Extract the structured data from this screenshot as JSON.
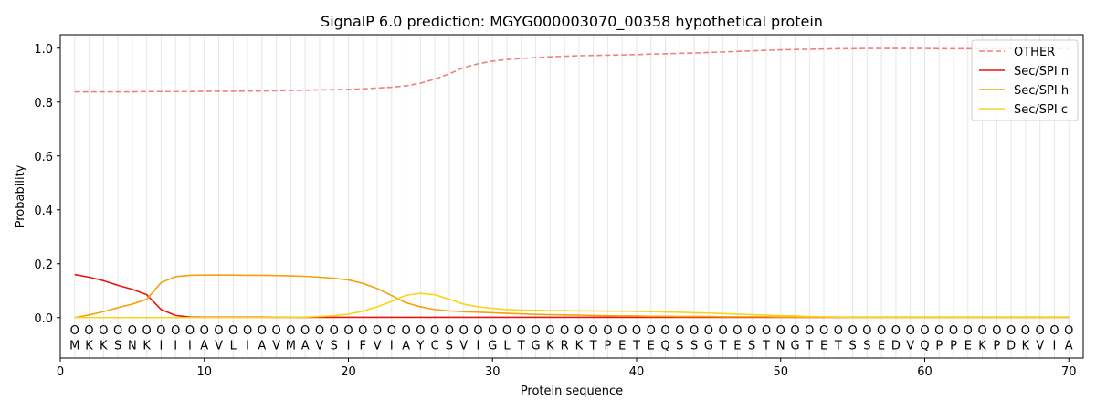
{
  "chart_data": {
    "type": "line",
    "title": "SignalP 6.0 prediction: MGYG000003070_00358 hypothetical protein",
    "xlabel": "Protein sequence",
    "ylabel": "Probability",
    "xlim": [
      0,
      71
    ],
    "ylim": [
      -0.15,
      1.05
    ],
    "xticks": [
      0,
      10,
      20,
      30,
      40,
      50,
      60,
      70
    ],
    "yticks": [
      "0.0",
      "0.2",
      "0.4",
      "0.6",
      "0.8",
      "1.0"
    ],
    "grid": "vertical lines at each residue",
    "legend_position": "top-right",
    "sequence": "MKKSNKIIIAVLIAVMAVSIFVIAYCSVIGLTGKRKTPETEQSSGTESTNGTETSSEDVQPPEKPDKVIA",
    "labels_row": "OOOOOOOOOOOOOOOOOOOOOOOOOOOOOOOOOOOOOOOOOOOOOOOOOOOOOOOOOOOOOOOOOOOOOO",
    "series": [
      {
        "name": "OTHER",
        "color": "#f08080",
        "dash": true,
        "values": [
          0.838,
          0.838,
          0.838,
          0.838,
          0.838,
          0.839,
          0.839,
          0.839,
          0.839,
          0.84,
          0.84,
          0.84,
          0.841,
          0.841,
          0.842,
          0.843,
          0.844,
          0.845,
          0.846,
          0.847,
          0.849,
          0.852,
          0.855,
          0.86,
          0.87,
          0.885,
          0.905,
          0.928,
          0.942,
          0.952,
          0.958,
          0.962,
          0.965,
          0.968,
          0.97,
          0.972,
          0.973,
          0.974,
          0.975,
          0.976,
          0.978,
          0.979,
          0.981,
          0.982,
          0.984,
          0.986,
          0.988,
          0.99,
          0.992,
          0.994,
          0.995,
          0.996,
          0.997,
          0.998,
          0.998,
          0.999,
          0.999,
          0.999,
          0.999,
          0.999,
          0.998,
          0.998,
          0.998,
          0.998,
          0.998,
          0.998,
          0.998,
          0.998,
          0.998,
          0.998
        ]
      },
      {
        "name": "Sec/SPI n",
        "color": "#e8140e",
        "dash": false,
        "values": [
          0.16,
          0.15,
          0.137,
          0.12,
          0.105,
          0.085,
          0.03,
          0.008,
          0.002,
          0.001,
          0.001,
          0.001,
          0.001,
          0.001,
          0.001,
          0.001,
          0.001,
          0.001,
          0.001,
          0.001,
          0.001,
          0.001,
          0.001,
          0.001,
          0.001,
          0.001,
          0.001,
          0.001,
          0.001,
          0.001,
          0.001,
          0.001,
          0.001,
          0.001,
          0.001,
          0.001,
          0.001,
          0.001,
          0.001,
          0.001,
          0.001,
          0.001,
          0.001,
          0.001,
          0.001,
          0.001,
          0.001,
          0.001,
          0.001,
          0.001,
          0.001,
          0.001,
          0.001,
          0.001,
          0.001,
          0.001,
          0.001,
          0.001,
          0.001,
          0.001,
          0.001,
          0.001,
          0.001,
          0.001,
          0.001,
          0.001,
          0.001,
          0.001,
          0.001,
          0.001
        ]
      },
      {
        "name": "Sec/SPI h",
        "color": "#f5a00c",
        "dash": false,
        "values": [
          0.0,
          0.01,
          0.022,
          0.037,
          0.05,
          0.068,
          0.13,
          0.152,
          0.157,
          0.158,
          0.158,
          0.158,
          0.157,
          0.157,
          0.156,
          0.155,
          0.153,
          0.15,
          0.146,
          0.14,
          0.127,
          0.108,
          0.082,
          0.055,
          0.04,
          0.03,
          0.025,
          0.022,
          0.02,
          0.018,
          0.016,
          0.014,
          0.012,
          0.011,
          0.01,
          0.009,
          0.008,
          0.007,
          0.006,
          0.006,
          0.005,
          0.005,
          0.004,
          0.004,
          0.004,
          0.003,
          0.003,
          0.003,
          0.003,
          0.002,
          0.002,
          0.002,
          0.002,
          0.002,
          0.002,
          0.002,
          0.002,
          0.002,
          0.002,
          0.002,
          0.002,
          0.002,
          0.002,
          0.002,
          0.002,
          0.002,
          0.002,
          0.002,
          0.002,
          0.002
        ]
      },
      {
        "name": "Sec/SPI c",
        "color": "#f8d41a",
        "dash": false,
        "values": [
          0.0,
          0.0,
          0.0,
          0.0,
          0.0,
          0.0,
          0.0,
          0.0,
          0.0,
          0.0,
          0.0,
          0.0,
          0.0,
          0.0,
          0.001,
          0.001,
          0.002,
          0.004,
          0.007,
          0.013,
          0.024,
          0.04,
          0.06,
          0.083,
          0.09,
          0.085,
          0.068,
          0.05,
          0.04,
          0.034,
          0.03,
          0.028,
          0.027,
          0.026,
          0.026,
          0.025,
          0.025,
          0.024,
          0.024,
          0.023,
          0.022,
          0.021,
          0.02,
          0.018,
          0.017,
          0.015,
          0.013,
          0.011,
          0.009,
          0.007,
          0.006,
          0.004,
          0.003,
          0.002,
          0.001,
          0.001,
          0.001,
          0.001,
          0.001,
          0.001,
          0.001,
          0.001,
          0.001,
          0.001,
          0.001,
          0.001,
          0.001,
          0.001,
          0.001,
          0.001
        ]
      }
    ]
  }
}
